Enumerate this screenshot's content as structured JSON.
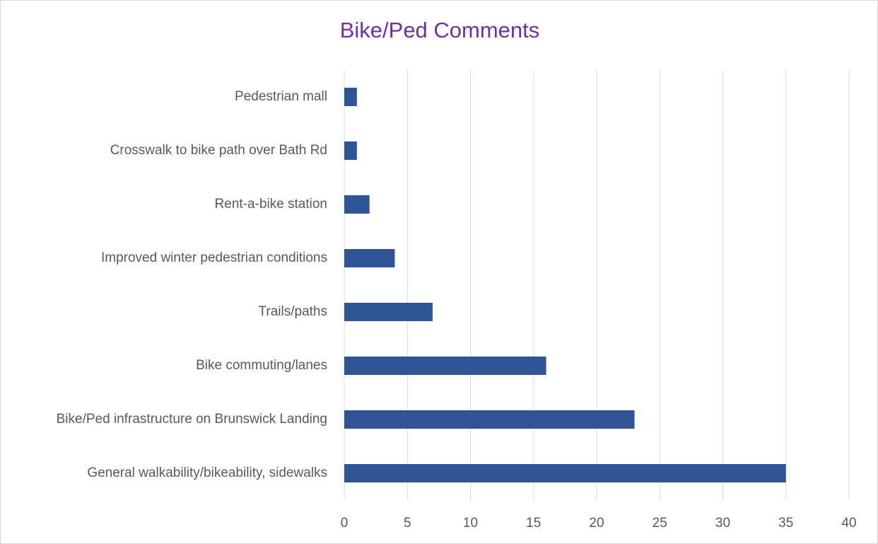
{
  "chart_data": {
    "type": "bar",
    "orientation": "horizontal",
    "title": "Bike/Ped Comments",
    "categories": [
      "Pedestrian mall",
      "Crosswalk to bike path over Bath Rd",
      "Rent-a-bike station",
      "Improved winter pedestrian conditions",
      "Trails/paths",
      "Bike commuting/lanes",
      "Bike/Ped infrastructure on Brunswick Landing",
      "General walkability/bikeability, sidewalks"
    ],
    "values": [
      1,
      1,
      2,
      4,
      7,
      16,
      23,
      35
    ],
    "color": "#2f5597",
    "xlim": [
      0,
      40
    ],
    "xticks": [
      0,
      5,
      10,
      15,
      20,
      25,
      30,
      35,
      40
    ],
    "grid": true
  }
}
